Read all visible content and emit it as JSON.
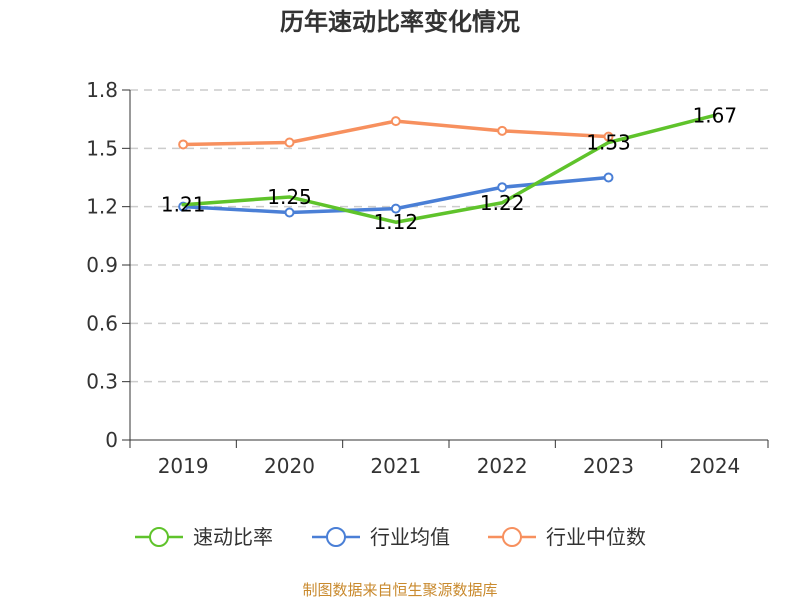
{
  "chart_data": {
    "type": "line",
    "title": "历年速动比率变化情况",
    "categories": [
      "2019",
      "2020",
      "2021",
      "2022",
      "2023",
      "2024"
    ],
    "y_ticks": [
      "0",
      "0.3",
      "0.6",
      "0.9",
      "1.2",
      "1.5",
      "1.8"
    ],
    "ylim": [
      0,
      1.8
    ],
    "grid": true,
    "legend_position": "bottom",
    "series": [
      {
        "name": "速动比率",
        "color": "#5fc32b",
        "values": [
          1.21,
          1.25,
          1.12,
          1.22,
          1.53,
          1.67
        ],
        "labels": [
          "1.21",
          "1.25",
          "1.12",
          "1.22",
          "1.53",
          "1.67"
        ]
      },
      {
        "name": "行业均值",
        "color": "#4a7fd6",
        "values": [
          1.2,
          1.17,
          1.19,
          1.3,
          1.35,
          null
        ]
      },
      {
        "name": "行业中位数",
        "color": "#f7905e",
        "values": [
          1.52,
          1.53,
          1.64,
          1.59,
          1.56,
          null
        ]
      }
    ],
    "source": "制图数据来自恒生聚源数据库",
    "source_color": "#c98a2e"
  }
}
